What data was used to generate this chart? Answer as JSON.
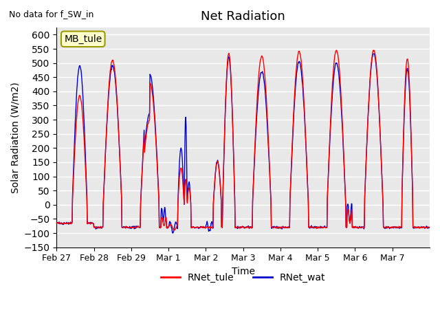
{
  "title": "Net Radiation",
  "subtitle": "No data for f_SW_in",
  "xlabel": "Time",
  "ylabel": "Solar Radiation (W/m2)",
  "ylim": [
    -150,
    625
  ],
  "yticks": [
    -150,
    -100,
    -50,
    0,
    50,
    100,
    150,
    200,
    250,
    300,
    350,
    400,
    450,
    500,
    550,
    600
  ],
  "legend_label1": "RNet_tule",
  "legend_label2": "RNet_wat",
  "color1": "#FF0000",
  "color2": "#0000CC",
  "station_label": "MB_tule",
  "station_box_facecolor": "#FFFFCC",
  "station_box_edgecolor": "#999900",
  "background_color": "#E8E8E8",
  "grid_color": "#FFFFFF",
  "xtick_labels": [
    "Feb 27",
    "Feb 28",
    "Feb 29",
    "Mar 1",
    "Mar 2",
    "Mar 3",
    "Mar 4",
    "Mar 5",
    "Mar 6",
    "Mar 7"
  ],
  "xtick_positions": [
    0,
    1,
    2,
    3,
    4,
    5,
    6,
    7,
    8,
    9
  ],
  "num_days": 10,
  "points_per_day": 96
}
